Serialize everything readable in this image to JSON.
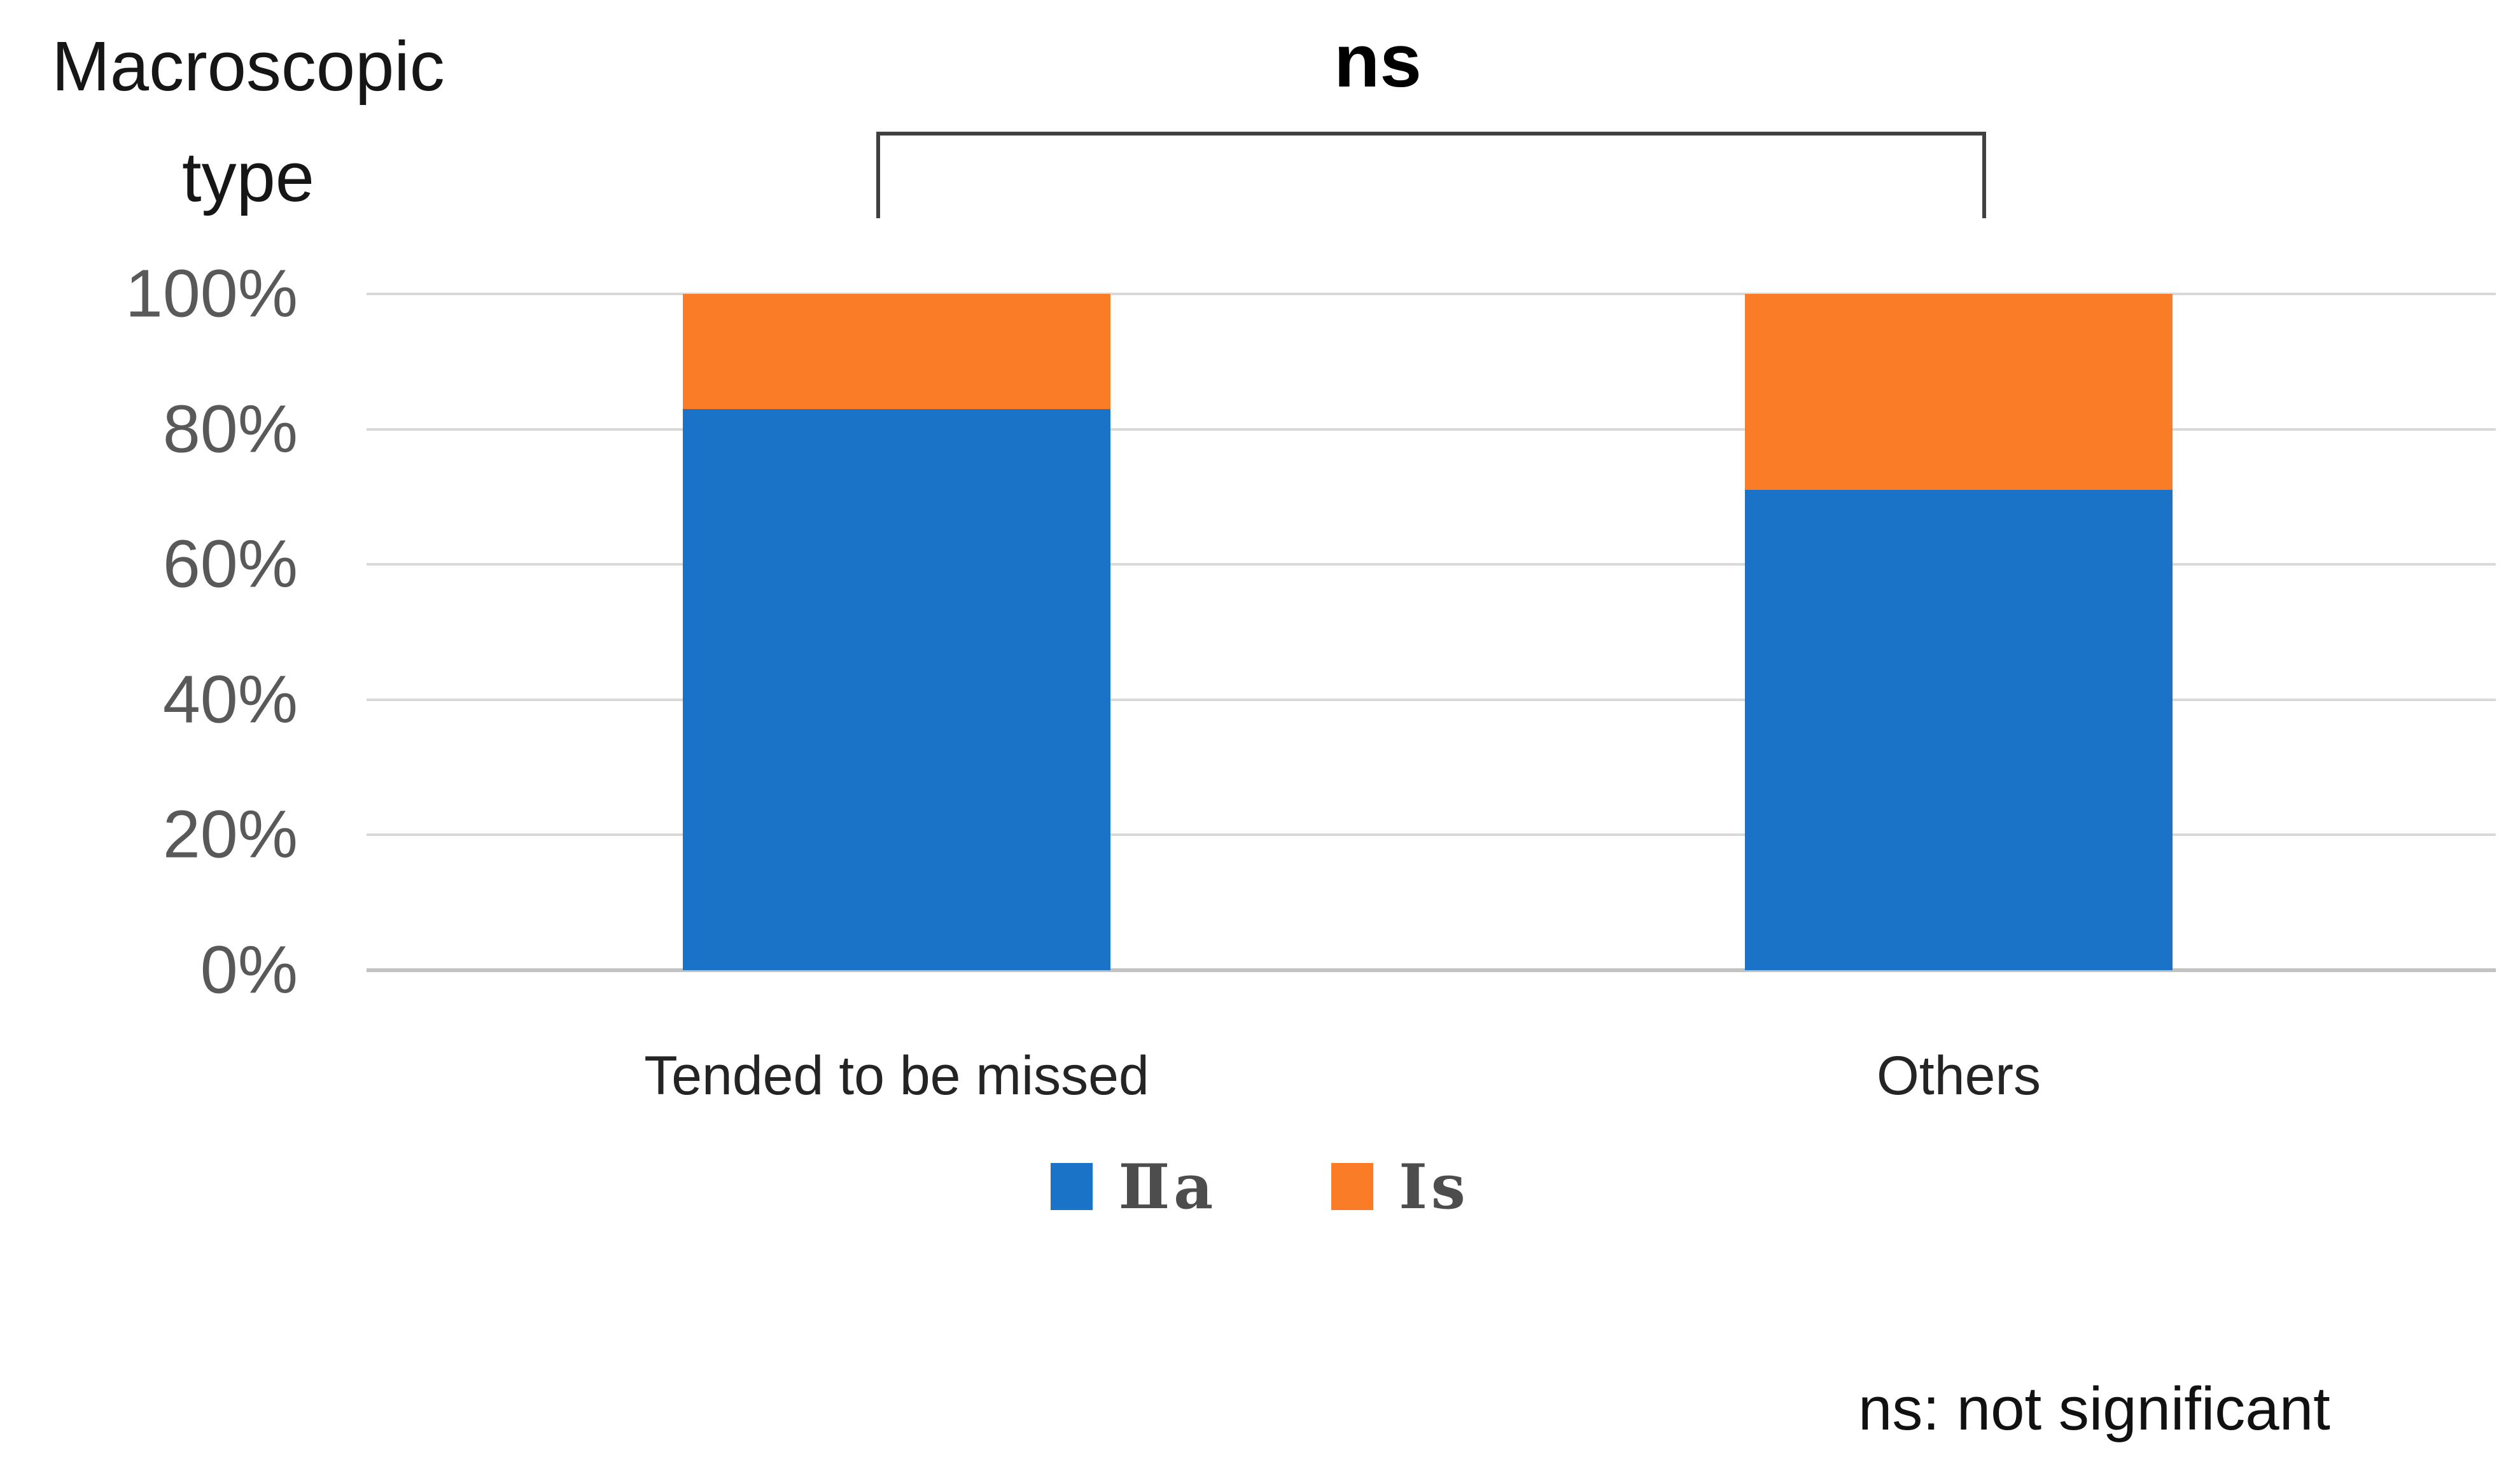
{
  "figure": {
    "y_axis_title_line1": "Macroscopic",
    "y_axis_title_line2": "type",
    "significance": {
      "label": "ns",
      "footnote": "ns: not significant"
    }
  },
  "chart_data": {
    "type": "bar",
    "stacked": true,
    "unit": "percent",
    "title": "",
    "ylabel": "Macroscopic type",
    "xlabel": "",
    "categories": [
      "Tended to be missed",
      "Others"
    ],
    "series": [
      {
        "name": "Ⅱa",
        "color": "#1B73C8",
        "values": [
          83,
          71
        ]
      },
      {
        "name": "Ⅰs",
        "color": "#FB7C26",
        "values": [
          17,
          29
        ]
      }
    ],
    "yticks": [
      "0%",
      "20%",
      "40%",
      "60%",
      "80%",
      "100%"
    ],
    "ylim": [
      0,
      100
    ],
    "grid": true,
    "legend_position": "bottom",
    "annotations": [
      {
        "text": "ns",
        "meaning": "not significant",
        "between": [
          "Tended to be missed",
          "Others"
        ]
      }
    ]
  }
}
